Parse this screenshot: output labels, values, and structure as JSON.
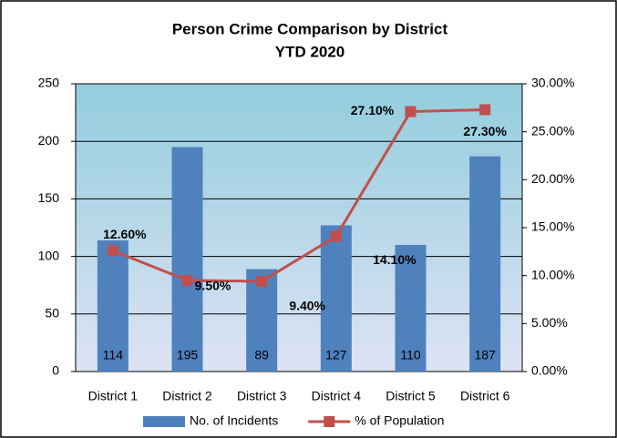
{
  "chart_data": {
    "type": "bar",
    "title": "Person Crime Comparison by District",
    "subtitle": "YTD 2020",
    "categories": [
      "District 1",
      "District 2",
      "District 3",
      "District 4",
      "District 5",
      "District 6"
    ],
    "series": [
      {
        "name": "No. of Incidents",
        "type": "bar",
        "color": "#4f81bd",
        "values": [
          114,
          195,
          89,
          127,
          110,
          187
        ]
      },
      {
        "name": "% of Population",
        "type": "line",
        "axis": "y2",
        "color": "#c0504d",
        "values": [
          12.6,
          9.5,
          9.4,
          14.1,
          27.1,
          27.3
        ],
        "value_labels": [
          "12.60%",
          "9.50%",
          "9.40%",
          "14.10%",
          "27.10%",
          "27.30%"
        ]
      }
    ],
    "ylim": [
      0,
      250
    ],
    "yticks": [
      0,
      50,
      100,
      150,
      200,
      250
    ],
    "y2lim": [
      0,
      30
    ],
    "y2ticks": [
      {
        "value": 0,
        "label": "0.00%"
      },
      {
        "value": 5,
        "label": "5.00%"
      },
      {
        "value": 10,
        "label": "10.00%"
      },
      {
        "value": 15,
        "label": "15.00%"
      },
      {
        "value": 20,
        "label": "20.00%"
      },
      {
        "value": 25,
        "label": "25.00%"
      },
      {
        "value": 30,
        "label": "30.00%"
      }
    ],
    "grid": true,
    "legend": "bottom"
  }
}
